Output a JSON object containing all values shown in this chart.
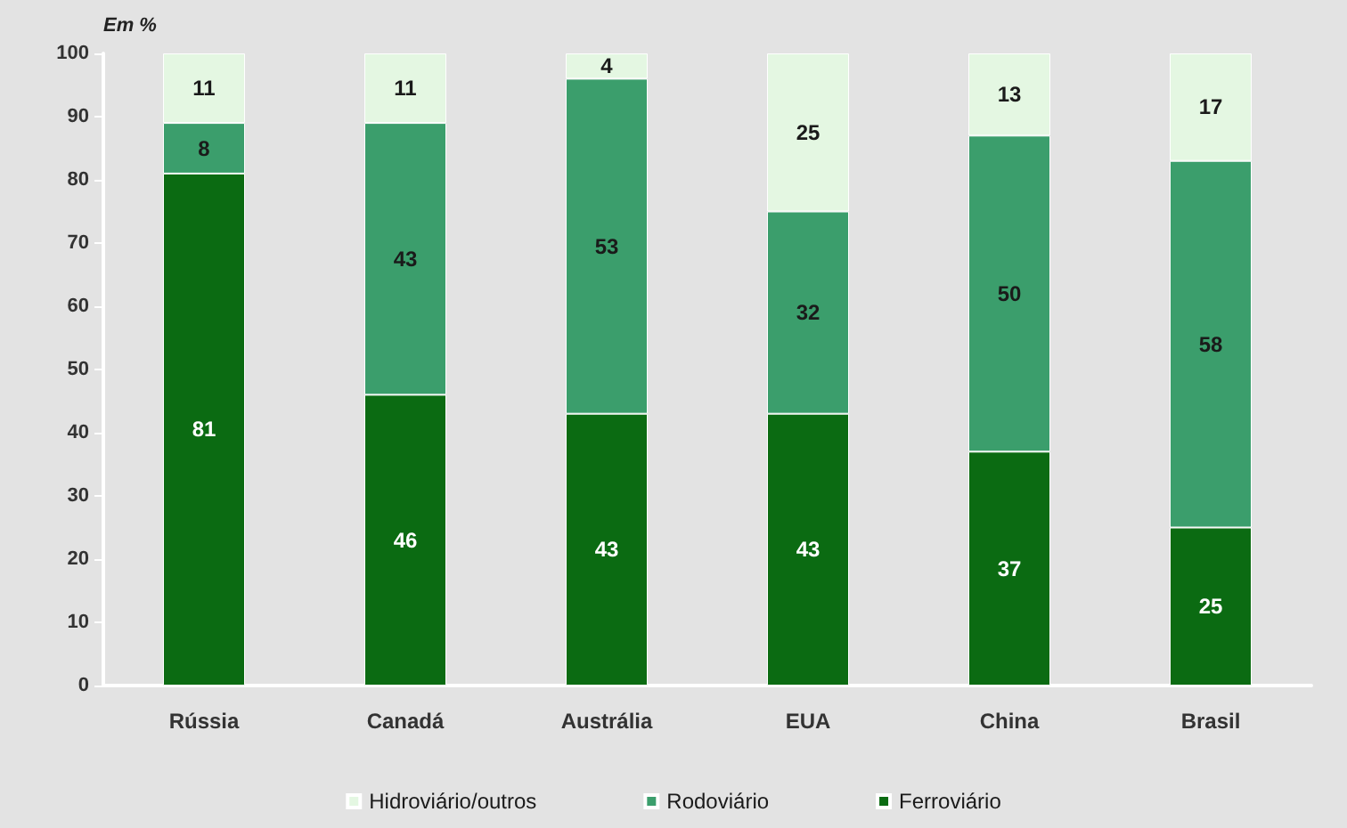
{
  "chart_data": {
    "type": "bar",
    "stacked": true,
    "ylabel": "Em %",
    "categories": [
      "Rússia",
      "Canadá",
      "Austrália",
      "EUA",
      "China",
      "Brasil"
    ],
    "series": [
      {
        "name": "Ferroviário",
        "color": "#0b6b12",
        "values": [
          81,
          46,
          43,
          43,
          37,
          25
        ]
      },
      {
        "name": "Rodoviário",
        "color": "#3b9e6c",
        "values": [
          8,
          43,
          53,
          32,
          50,
          58
        ]
      },
      {
        "name": "Hidroviário/outros",
        "color": "#e4f7e2",
        "values": [
          11,
          11,
          4,
          25,
          13,
          17
        ]
      }
    ],
    "ylim": [
      0,
      100
    ],
    "yticks": [
      0,
      10,
      20,
      30,
      40,
      50,
      60,
      70,
      80,
      90,
      100
    ],
    "data_labels": true,
    "grid": false,
    "legend": "bottom"
  }
}
